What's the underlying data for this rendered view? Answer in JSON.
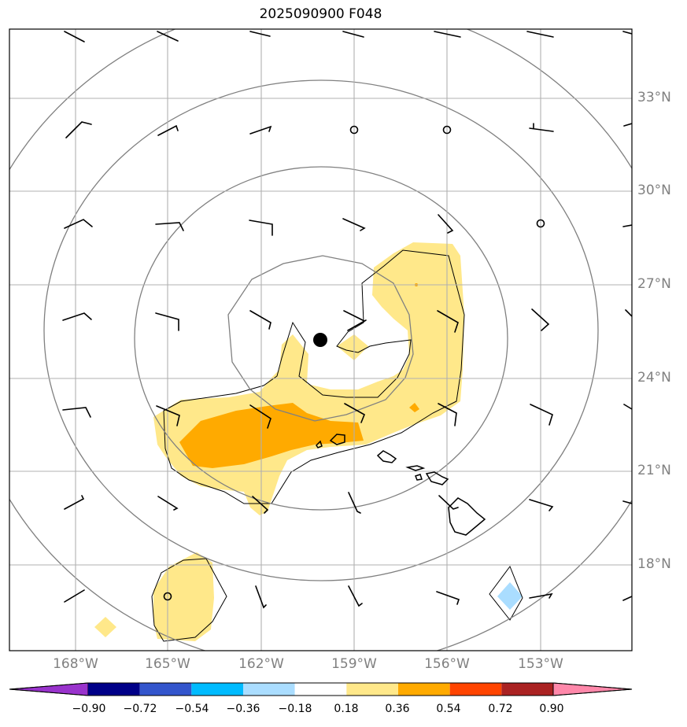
{
  "title": "2025090900 F048",
  "lat_labels": [
    "33°N",
    "30°N",
    "27°N",
    "24°N",
    "21°N",
    "18°N"
  ],
  "lon_labels": [
    "168°W",
    "165°W",
    "162°W",
    "159°W",
    "156°W",
    "153°W"
  ],
  "colorbar": {
    "ticks": [
      "−0.90",
      "−0.72",
      "−0.54",
      "−0.36",
      "−0.18",
      "0.18",
      "0.36",
      "0.54",
      "0.72",
      "0.90"
    ],
    "colors": [
      "#9933cc",
      "#000088",
      "#3355cc",
      "#00bbff",
      "#aaddff",
      "#ffffff",
      "#ffe88a",
      "#ffaa00",
      "#ff4400",
      "#aa2222",
      "#ff88aa"
    ]
  }
}
